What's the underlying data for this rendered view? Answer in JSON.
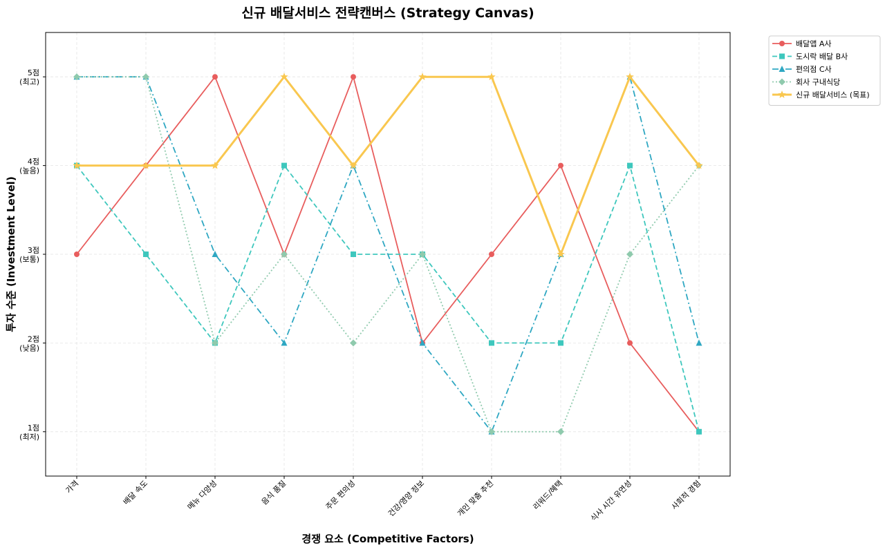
{
  "chart_data": {
    "type": "line",
    "title": "신규 배달서비스 전략캔버스 (Strategy Canvas)",
    "xlabel": "경쟁 요소 (Competitive Factors)",
    "ylabel": "투자 수준 (Investment Level)",
    "ylim": [
      0.5,
      5.5
    ],
    "grid": true,
    "legend_position": "outside-top-right",
    "categories": [
      "가격",
      "배달 속도",
      "메뉴 다양성",
      "음식 품질",
      "주문 편의성",
      "건강/영양 정보",
      "개인 맞춤 추천",
      "리워드/혜택",
      "식사 시간 유연성",
      "사회적 경험"
    ],
    "yticks": [
      {
        "value": 1,
        "label": "1점",
        "sub": "(최저)"
      },
      {
        "value": 2,
        "label": "2점",
        "sub": "(낮음)"
      },
      {
        "value": 3,
        "label": "3점",
        "sub": "(보통)"
      },
      {
        "value": 4,
        "label": "4점",
        "sub": "(높음)"
      },
      {
        "value": 5,
        "label": "5점",
        "sub": "(최고)"
      }
    ],
    "series": [
      {
        "name": "배달앱 A사",
        "color": "#e85d5d",
        "style": "solid",
        "marker": "circle",
        "values": [
          3,
          4,
          5,
          3,
          5,
          2,
          3,
          4,
          2,
          1
        ]
      },
      {
        "name": "도시락 배달 B사",
        "color": "#3ec7bd",
        "style": "dashed",
        "marker": "square",
        "values": [
          4,
          3,
          2,
          4,
          3,
          3,
          2,
          2,
          4,
          1
        ]
      },
      {
        "name": "편의점 C사",
        "color": "#2ea7c2",
        "style": "dashdot",
        "marker": "triangle",
        "values": [
          5,
          5,
          3,
          2,
          4,
          2,
          1,
          3,
          5,
          2
        ]
      },
      {
        "name": "회사 구내식당",
        "color": "#8fcaad",
        "style": "dotted",
        "marker": "diamond",
        "values": [
          5,
          5,
          2,
          3,
          2,
          3,
          1,
          1,
          3,
          4
        ]
      },
      {
        "name": "신규 배달서비스 (목표)",
        "color": "#f9c74f",
        "style": "solid-thick",
        "marker": "star",
        "values": [
          4,
          4,
          4,
          5,
          4,
          5,
          5,
          3,
          5,
          4
        ]
      }
    ]
  }
}
